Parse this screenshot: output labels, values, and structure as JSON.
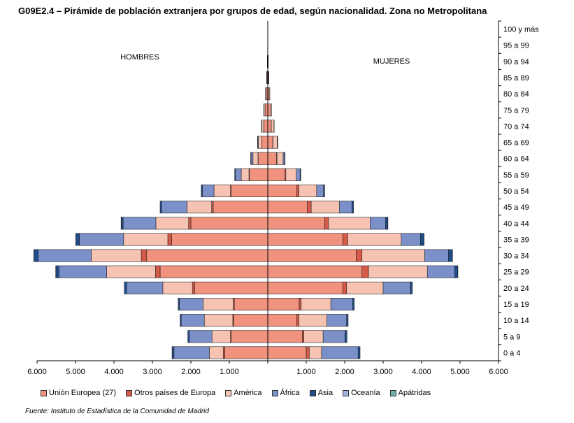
{
  "title": "G09E2.4 – Pirámide de población extranjera por grupos de edad, según nacionalidad. Zona no Metropolitana",
  "source": "Fuente: Instituto de Estadística de la Comunidad de Madrid",
  "chart_data": {
    "type": "bar",
    "orientation": "horizontal-pyramid",
    "side_labels": {
      "left": "HOMBRES",
      "right": "MUJERES"
    },
    "x_ticks": [
      "6.000",
      "5.000",
      "4.000",
      "3.000",
      "2.000",
      "1.000",
      "",
      "1.000",
      "2.000",
      "3.000",
      "4.000",
      "5.000",
      "6.000"
    ],
    "xlim": [
      -6000,
      6000
    ],
    "categories": [
      "0 a 4",
      "5 a 9",
      "10 a 14",
      "15 a 19",
      "20 a 24",
      "25 a 29",
      "30 a 34",
      "35 a 39",
      "40 a 44",
      "45 a 49",
      "50 a 54",
      "55 a 59",
      "60 a 64",
      "65 a 69",
      "70 a 74",
      "75 a 79",
      "80 a 84",
      "85 a 89",
      "90 a 94",
      "95 a 99",
      "100 y más"
    ],
    "series": [
      {
        "name": "Unión Europea (27)",
        "color": "#f0927e",
        "hombres": [
          1120,
          950,
          880,
          870,
          1900,
          2800,
          3150,
          2500,
          2000,
          1420,
          950,
          480,
          250,
          150,
          100,
          70,
          40,
          20,
          8,
          2,
          0
        ],
        "mujeres": [
          1000,
          900,
          750,
          820,
          1950,
          2450,
          2300,
          1950,
          1480,
          1030,
          750,
          450,
          230,
          130,
          90,
          60,
          35,
          20,
          8,
          2,
          0
        ]
      },
      {
        "name": "Otros países de Europa",
        "color": "#d65a48",
        "hombres": [
          40,
          20,
          30,
          30,
          60,
          120,
          140,
          100,
          60,
          40,
          20,
          10,
          5,
          3,
          2,
          0,
          0,
          0,
          0,
          0,
          0
        ],
        "mujeres": [
          80,
          40,
          60,
          50,
          100,
          170,
          150,
          130,
          100,
          100,
          60,
          20,
          10,
          5,
          2,
          0,
          0,
          0,
          0,
          0,
          0
        ]
      },
      {
        "name": "América",
        "color": "#f6c3b2",
        "hombres": [
          360,
          480,
          740,
          780,
          770,
          1270,
          1300,
          1150,
          850,
          640,
          430,
          200,
          130,
          90,
          50,
          30,
          20,
          10,
          5,
          0,
          0
        ],
        "mujeres": [
          320,
          500,
          730,
          770,
          950,
          1530,
          1630,
          1390,
          1080,
          730,
          460,
          270,
          160,
          110,
          70,
          40,
          20,
          10,
          5,
          0,
          0
        ]
      },
      {
        "name": "África",
        "color": "#7b8fc9",
        "hombres": [
          920,
          590,
          600,
          620,
          940,
          1240,
          1380,
          1150,
          850,
          660,
          300,
          150,
          50,
          20,
          10,
          5,
          0,
          0,
          0,
          0,
          0
        ],
        "mujeres": [
          950,
          570,
          510,
          570,
          710,
          710,
          620,
          500,
          400,
          330,
          180,
          100,
          40,
          10,
          5,
          0,
          0,
          0,
          0,
          0,
          0
        ]
      },
      {
        "name": "Asia",
        "color": "#1f4e8c",
        "hombres": [
          50,
          40,
          30,
          30,
          60,
          80,
          110,
          90,
          50,
          40,
          30,
          20,
          10,
          5,
          0,
          0,
          0,
          0,
          0,
          0,
          0
        ],
        "mujeres": [
          50,
          50,
          40,
          40,
          50,
          80,
          100,
          90,
          60,
          40,
          30,
          20,
          10,
          5,
          0,
          0,
          0,
          0,
          0,
          0,
          0
        ]
      },
      {
        "name": "Oceanía",
        "color": "#9fb5e0",
        "hombres": [
          0,
          0,
          0,
          0,
          0,
          5,
          5,
          5,
          5,
          0,
          0,
          0,
          0,
          0,
          0,
          0,
          0,
          0,
          0,
          0,
          0
        ],
        "mujeres": [
          0,
          0,
          0,
          0,
          0,
          5,
          5,
          5,
          5,
          0,
          0,
          0,
          0,
          0,
          0,
          0,
          0,
          0,
          0,
          0,
          0
        ]
      },
      {
        "name": "Apátridas",
        "color": "#6fb3a8",
        "hombres": [
          0,
          0,
          0,
          0,
          0,
          0,
          0,
          0,
          0,
          0,
          0,
          0,
          0,
          0,
          0,
          0,
          0,
          0,
          0,
          0,
          0
        ],
        "mujeres": [
          0,
          0,
          0,
          0,
          0,
          0,
          0,
          0,
          0,
          0,
          0,
          0,
          0,
          0,
          0,
          0,
          0,
          0,
          0,
          0,
          0
        ]
      }
    ],
    "grid": false,
    "legend_position": "bottom"
  }
}
